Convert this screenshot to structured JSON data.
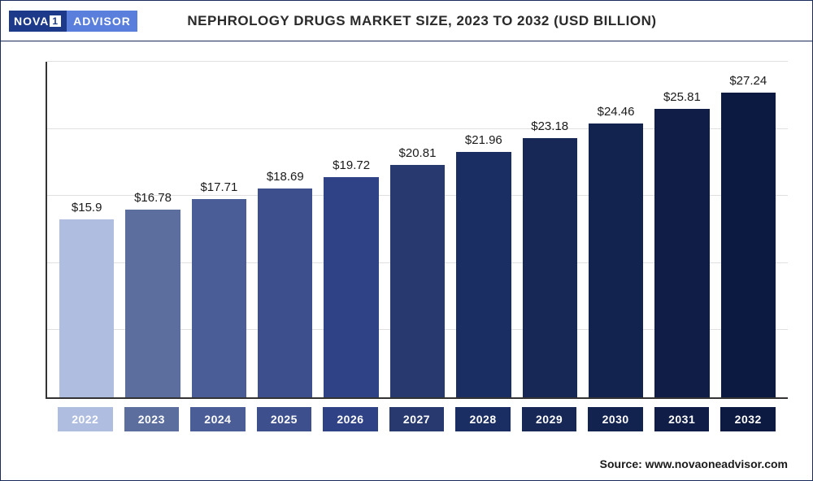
{
  "logo": {
    "part1": "NOVA",
    "one": "1",
    "part2": "ADVISOR"
  },
  "title": "NEPHROLOGY DRUGS MARKET SIZE, 2023 TO 2032 (USD BILLION)",
  "source_label": "Source: www.novaoneadvisor.com",
  "chart": {
    "type": "bar",
    "ylim_max": 30,
    "gridline_count": 5,
    "gridline_color": "#e0e0e0",
    "axis_color": "#333333",
    "background": "#ffffff",
    "label_fontsize": 15,
    "year_fontsize": 14,
    "categories": [
      "2022",
      "2023",
      "2024",
      "2025",
      "2026",
      "2027",
      "2028",
      "2029",
      "2030",
      "2031",
      "2032"
    ],
    "value_labels": [
      "$15.9",
      "$16.78",
      "$17.71",
      "$18.69",
      "$19.72",
      "$20.81",
      "$21.96",
      "$23.18",
      "$24.46",
      "$25.81",
      "$27.24"
    ],
    "values": [
      15.9,
      16.78,
      17.71,
      18.69,
      19.72,
      20.81,
      21.96,
      23.18,
      24.46,
      25.81,
      27.24
    ],
    "bar_colors": [
      "#aebde0",
      "#5c6e9e",
      "#4a5d96",
      "#3d4f8d",
      "#2f4285",
      "#28396f",
      "#1b2e63",
      "#172857",
      "#132350",
      "#0f1d47",
      "#0c1940"
    ],
    "xaxis_cell_colors": [
      "#aebde0",
      "#5c6e9e",
      "#4a5d96",
      "#3d4f8d",
      "#2f4285",
      "#28396f",
      "#1b2e63",
      "#172857",
      "#132350",
      "#0f1d47",
      "#0c1940"
    ]
  }
}
